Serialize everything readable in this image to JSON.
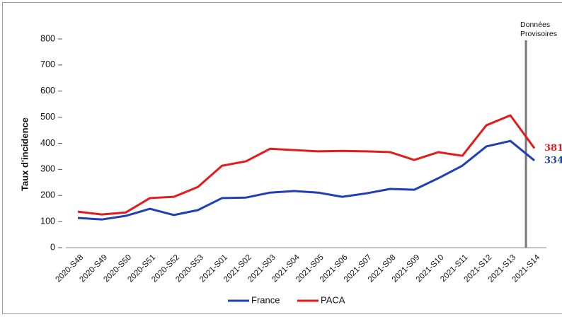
{
  "chart_data": {
    "type": "line",
    "y_label": "Taux d'incidence",
    "categories": [
      "2020-S48",
      "2020-S49",
      "2020-S50",
      "2020-S51",
      "2020-S52",
      "2020-S53",
      "2021-S01",
      "2021-S02",
      "2021-S03",
      "2021-S04",
      "2021-S05",
      "2021-S06",
      "2021-S07",
      "2021-S08",
      "2021-S09",
      "2021-S10",
      "2021-S11",
      "2021-S12",
      "2021-S13",
      "2021-S14"
    ],
    "series": [
      {
        "name": "France",
        "color": "#1f3fb5",
        "values": [
          114,
          108,
          122,
          149,
          125,
          144,
          190,
          192,
          211,
          217,
          211,
          195,
          208,
          225,
          222,
          266,
          314,
          388,
          409,
          334
        ]
      },
      {
        "name": "PACA",
        "color": "#e41b1b",
        "values": [
          138,
          127,
          135,
          190,
          195,
          233,
          314,
          331,
          379,
          374,
          369,
          371,
          369,
          366,
          336,
          366,
          352,
          469,
          507,
          381
        ]
      }
    ],
    "ylim": [
      0,
      800
    ],
    "yticks": [
      0,
      100,
      200,
      300,
      400,
      500,
      600,
      700,
      800
    ],
    "annotation": [
      "Données",
      "Provisoires"
    ],
    "legend": "bottom"
  }
}
